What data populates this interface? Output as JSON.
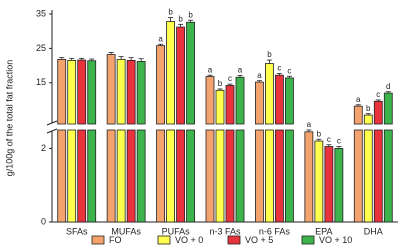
{
  "chart_data": {
    "type": "bar",
    "y_label": "g/100g of the total fat fraction",
    "categories": [
      "SFAs",
      "MUFAs",
      "PUFAs",
      "n-3 FAs",
      "n-6 FAs",
      "EPA",
      "DHA"
    ],
    "ylim": [
      3,
      35
    ],
    "yticks": [
      15,
      25,
      35
    ],
    "ylim_lower": [
      0,
      2.5
    ],
    "yticks_lower": [
      0,
      2
    ],
    "series": [
      {
        "name": "FO",
        "color": "#f4a36e",
        "values": [
          21.8,
          23.2,
          25.8,
          16.8,
          15.2,
          2.45,
          8.2
        ],
        "errors": [
          0.5,
          0.6,
          0.4,
          0.4,
          0.4,
          0.05,
          0.4
        ],
        "letters": [
          null,
          null,
          "a",
          "a",
          "a",
          "a",
          "a"
        ]
      },
      {
        "name": "VO + 0",
        "color": "#ffff4d",
        "values": [
          21.5,
          21.8,
          32.8,
          12.8,
          20.6,
          2.2,
          5.6
        ],
        "errors": [
          0.6,
          0.8,
          1.2,
          0.4,
          1.0,
          0.05,
          0.4
        ],
        "letters": [
          null,
          null,
          "b",
          "b",
          "b",
          "b",
          "b"
        ]
      },
      {
        "name": "VO + 5",
        "color": "#e8323c",
        "values": [
          21.6,
          21.5,
          31.2,
          14.2,
          17.2,
          2.05,
          9.6
        ],
        "errors": [
          0.5,
          0.8,
          0.8,
          0.4,
          0.5,
          0.05,
          0.4
        ],
        "letters": [
          null,
          null,
          "b",
          "c",
          "c",
          "c",
          "c"
        ]
      },
      {
        "name": "VO + 10",
        "color": "#3cb44b",
        "values": [
          21.4,
          21.2,
          32.6,
          16.6,
          16.4,
          2.0,
          12.0
        ],
        "errors": [
          0.5,
          0.8,
          0.6,
          0.5,
          0.5,
          0.05,
          0.4
        ],
        "letters": [
          null,
          null,
          "b",
          "a",
          "c",
          "c",
          "d"
        ]
      }
    ]
  }
}
